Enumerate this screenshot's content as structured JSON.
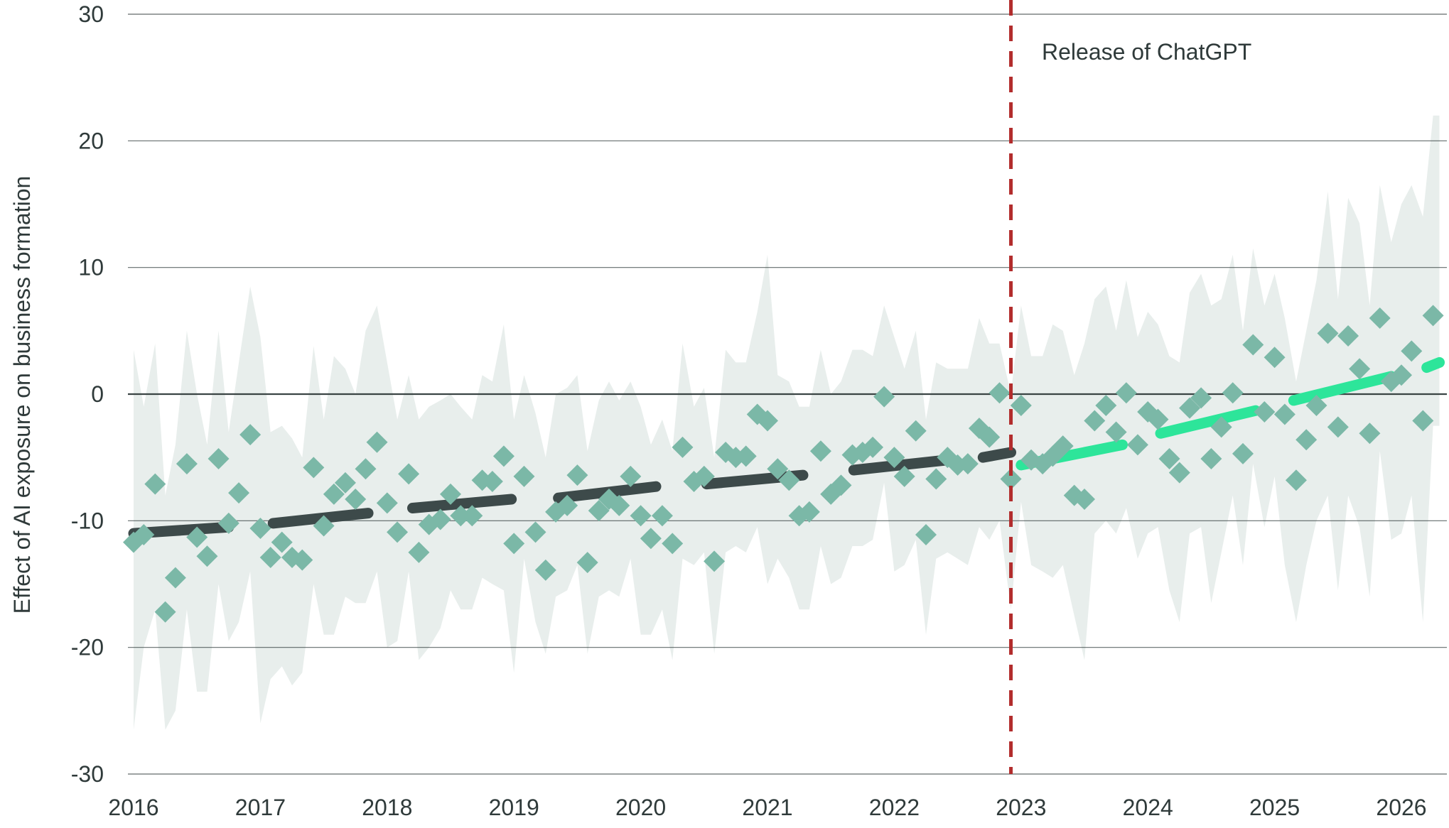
{
  "chart_data": {
    "type": "scatter",
    "title": "",
    "xlabel": "",
    "ylabel": "Effect of AI exposure on business formation",
    "xlim": [
      2016,
      2026.3
    ],
    "ylim": [
      -30,
      30
    ],
    "xticks": [
      "2016",
      "2017",
      "2018",
      "2019",
      "2020",
      "2021",
      "2022",
      "2023",
      "2024",
      "2025",
      "2026"
    ],
    "yticks": [
      "30",
      "20",
      "10",
      "0",
      "-10",
      "-20",
      "-30"
    ],
    "grid": true,
    "annotation": {
      "text": "Release of ChatGPT",
      "x": 2022.92
    },
    "colors": {
      "points": "#7bb8a7",
      "band": "#e8eeec",
      "pre_trend": "#3d4a4a",
      "post_trend": "#2de59a",
      "release_line": "#b22d2d",
      "grid": "#2f3a3a"
    },
    "series": [
      {
        "name": "",
        "kind": "points",
        "x": [
          2016.0,
          2016.08,
          2016.17,
          2016.25,
          2016.33,
          2016.42,
          2016.5,
          2016.58,
          2016.67,
          2016.75,
          2016.83,
          2016.92,
          2017.0,
          2017.08,
          2017.17,
          2017.25,
          2017.33,
          2017.42,
          2017.5,
          2017.58,
          2017.67,
          2017.75,
          2017.83,
          2017.92,
          2018.0,
          2018.08,
          2018.17,
          2018.25,
          2018.33,
          2018.42,
          2018.5,
          2018.58,
          2018.67,
          2018.75,
          2018.83,
          2018.92,
          2019.0,
          2019.08,
          2019.17,
          2019.25,
          2019.33,
          2019.42,
          2019.5,
          2019.58,
          2019.67,
          2019.75,
          2019.83,
          2019.92,
          2020.0,
          2020.08,
          2020.17,
          2020.25,
          2020.33,
          2020.42,
          2020.5,
          2020.58,
          2020.67,
          2020.75,
          2020.83,
          2020.92,
          2021.0,
          2021.08,
          2021.17,
          2021.25,
          2021.33,
          2021.42,
          2021.5,
          2021.58,
          2021.67,
          2021.75,
          2021.83,
          2021.92,
          2022.0,
          2022.08,
          2022.17,
          2022.25,
          2022.33,
          2022.42,
          2022.5,
          2022.58,
          2022.67,
          2022.75,
          2022.83,
          2022.92,
          2023.0,
          2023.08,
          2023.17,
          2023.25,
          2023.33,
          2023.42,
          2023.5,
          2023.58,
          2023.67,
          2023.75,
          2023.83,
          2023.92,
          2024.0,
          2024.08,
          2024.17,
          2024.25,
          2024.33,
          2024.42,
          2024.5,
          2024.58,
          2024.67,
          2024.75,
          2024.83,
          2024.92,
          2025.0,
          2025.08,
          2025.17,
          2025.25,
          2025.33,
          2025.42,
          2025.5,
          2025.58,
          2025.67,
          2025.75,
          2025.83,
          2025.92,
          2026.0,
          2026.08,
          2026.17,
          2026.25
        ],
        "y": [
          -11.7,
          -11.1,
          -7.1,
          -17.2,
          -14.5,
          -5.5,
          -11.3,
          -12.8,
          -5.1,
          -10.2,
          -7.8,
          -3.2,
          -10.6,
          -12.9,
          -11.7,
          -12.9,
          -13.1,
          -5.8,
          -10.4,
          -7.9,
          -7.0,
          -8.3,
          -5.9,
          -3.8,
          -8.6,
          -10.9,
          -6.3,
          -12.5,
          -10.3,
          -9.9,
          -7.9,
          -9.6,
          -9.6,
          -6.8,
          -6.9,
          -4.9,
          -11.8,
          -6.5,
          -10.9,
          -13.9,
          -9.3,
          -8.8,
          -6.4,
          -13.3,
          -9.2,
          -8.3,
          -8.8,
          -6.5,
          -9.6,
          -11.4,
          -9.6,
          -11.8,
          -4.2,
          -6.9,
          -6.5,
          -13.2,
          -4.6,
          -5.0,
          -4.9,
          -1.6,
          -2.1,
          -5.9,
          -6.8,
          -9.6,
          -9.3,
          -4.5,
          -7.9,
          -7.2,
          -4.8,
          -4.6,
          -4.2,
          -0.2,
          -5.0,
          -6.5,
          -2.9,
          -11.1,
          -6.7,
          -5.0,
          -5.6,
          -5.5,
          -2.7,
          -3.4,
          0.1,
          -6.7,
          -0.9,
          -5.2,
          -5.5,
          -4.9,
          -4.1,
          -8.0,
          -8.3,
          -2.1,
          -0.9,
          -3.0,
          0.1,
          -4.0,
          -1.4,
          -2.0,
          -5.1,
          -6.2,
          -1.1,
          -0.3,
          -5.1,
          -2.6,
          0.1,
          -4.7,
          3.9,
          -1.4,
          2.9,
          -1.6,
          -6.8,
          -3.6,
          -0.9,
          4.8,
          -2.6,
          4.6,
          2.0,
          -3.1,
          6.0,
          1.0,
          1.5,
          3.4,
          -2.1,
          6.2
        ]
      },
      {
        "name": "",
        "kind": "band",
        "x": [
          2016.0,
          2016.08,
          2016.17,
          2016.25,
          2016.33,
          2016.42,
          2016.5,
          2016.58,
          2016.67,
          2016.75,
          2016.83,
          2016.92,
          2017.0,
          2017.08,
          2017.17,
          2017.25,
          2017.33,
          2017.42,
          2017.5,
          2017.58,
          2017.67,
          2017.75,
          2017.83,
          2017.92,
          2018.0,
          2018.08,
          2018.17,
          2018.25,
          2018.33,
          2018.42,
          2018.5,
          2018.58,
          2018.67,
          2018.75,
          2018.83,
          2018.92,
          2019.0,
          2019.08,
          2019.17,
          2019.25,
          2019.33,
          2019.42,
          2019.5,
          2019.58,
          2019.67,
          2019.75,
          2019.83,
          2019.92,
          2020.0,
          2020.08,
          2020.17,
          2020.25,
          2020.33,
          2020.42,
          2020.5,
          2020.58,
          2020.67,
          2020.75,
          2020.83,
          2020.92,
          2021.0,
          2021.08,
          2021.17,
          2021.25,
          2021.33,
          2021.42,
          2021.5,
          2021.58,
          2021.67,
          2021.75,
          2021.83,
          2021.92,
          2022.0,
          2022.08,
          2022.17,
          2022.25,
          2022.33,
          2022.42,
          2022.5,
          2022.58,
          2022.67,
          2022.75,
          2022.83,
          2022.92,
          2023.0,
          2023.08,
          2023.17,
          2023.25,
          2023.33,
          2023.42,
          2023.5,
          2023.58,
          2023.67,
          2023.75,
          2023.83,
          2023.92,
          2024.0,
          2024.08,
          2024.17,
          2024.25,
          2024.33,
          2024.42,
          2024.5,
          2024.58,
          2024.67,
          2024.75,
          2024.83,
          2024.92,
          2025.0,
          2025.08,
          2025.17,
          2025.25,
          2025.33,
          2025.42,
          2025.5,
          2025.58,
          2025.67,
          2025.75,
          2025.83,
          2025.92,
          2026.0,
          2026.08,
          2026.17,
          2026.25,
          2026.3
        ],
        "upper": [
          3.5,
          -1.0,
          4.0,
          -8.0,
          -4.0,
          5.0,
          0.0,
          -4.0,
          5.0,
          -3.0,
          2.5,
          8.5,
          4.5,
          -3.0,
          -2.5,
          -3.5,
          -5.0,
          3.8,
          -2.0,
          3.0,
          2.0,
          0.0,
          5.0,
          7.0,
          2.5,
          -2.0,
          1.5,
          -2.0,
          -1.0,
          -0.5,
          0.0,
          -1.0,
          -2.0,
          1.5,
          1.0,
          5.5,
          -2.0,
          1.5,
          -1.5,
          -5.0,
          0.0,
          0.5,
          1.5,
          -4.5,
          -0.5,
          1.0,
          -0.5,
          1.0,
          -1.0,
          -4.0,
          -2.0,
          -4.5,
          4.0,
          -1.0,
          0.5,
          -5.0,
          3.5,
          2.5,
          2.5,
          6.5,
          11.0,
          1.5,
          1.0,
          -1.0,
          -1.0,
          3.5,
          0.0,
          1.0,
          3.5,
          3.5,
          3.0,
          7.0,
          4.5,
          2.0,
          5.0,
          -2.0,
          2.5,
          2.0,
          2.0,
          2.0,
          6.0,
          4.0,
          4.0,
          0.0,
          7.0,
          3.0,
          3.0,
          5.5,
          5.0,
          1.5,
          4.0,
          7.5,
          8.5,
          5.0,
          9.0,
          4.5,
          6.5,
          5.5,
          3.0,
          2.5,
          8.0,
          9.5,
          7.0,
          7.5,
          11.0,
          5.0,
          11.5,
          7.0,
          9.5,
          6.0,
          1.0,
          5.0,
          9.0,
          16.0,
          7.5,
          15.5,
          13.5,
          7.0,
          16.5,
          12.0,
          15.0,
          16.5,
          14.0,
          22.0,
          22.0
        ],
        "lower": [
          -26.5,
          -20.0,
          -17.0,
          -26.5,
          -25.0,
          -17.0,
          -23.5,
          -23.5,
          -15.0,
          -19.5,
          -18.0,
          -14.0,
          -26.0,
          -22.5,
          -21.5,
          -23.0,
          -22.0,
          -15.0,
          -19.0,
          -19.0,
          -16.0,
          -16.5,
          -16.5,
          -14.0,
          -20.0,
          -19.5,
          -14.0,
          -21.0,
          -20.0,
          -18.5,
          -15.5,
          -17.0,
          -17.0,
          -14.5,
          -15.0,
          -15.5,
          -22.0,
          -13.0,
          -18.0,
          -20.5,
          -16.0,
          -15.5,
          -13.5,
          -20.5,
          -16.0,
          -15.5,
          -16.0,
          -13.0,
          -19.0,
          -19.0,
          -17.0,
          -21.0,
          -13.0,
          -13.5,
          -12.5,
          -20.5,
          -12.5,
          -12.0,
          -12.5,
          -10.5,
          -15.0,
          -13.0,
          -14.5,
          -17.0,
          -17.0,
          -12.0,
          -15.0,
          -14.5,
          -12.0,
          -12.0,
          -11.5,
          -7.0,
          -14.0,
          -13.5,
          -11.5,
          -19.0,
          -13.0,
          -12.5,
          -13.0,
          -13.5,
          -10.5,
          -11.5,
          -10.0,
          -17.0,
          -8.5,
          -13.5,
          -14.0,
          -14.5,
          -13.5,
          -17.5,
          -21.0,
          -11.0,
          -10.0,
          -11.0,
          -9.0,
          -13.0,
          -11.0,
          -10.5,
          -15.5,
          -18.0,
          -11.0,
          -10.5,
          -16.5,
          -12.5,
          -8.0,
          -13.5,
          -5.5,
          -10.5,
          -6.5,
          -13.5,
          -18.0,
          -13.5,
          -10.0,
          -8.0,
          -15.5,
          -8.0,
          -10.5,
          -16.0,
          -4.5,
          -11.5,
          -11.0,
          -8.0,
          -18.0,
          -2.5,
          -2.5
        ]
      },
      {
        "name": "",
        "kind": "pre-trend",
        "segments": [
          {
            "x": [
              2016.0,
              2016.75
            ],
            "y": [
              -11.0,
              -10.5
            ]
          },
          {
            "x": [
              2017.1,
              2017.85
            ],
            "y": [
              -10.2,
              -9.4
            ]
          },
          {
            "x": [
              2018.2,
              2018.98
            ],
            "y": [
              -9.0,
              -8.3
            ]
          },
          {
            "x": [
              2019.35,
              2020.12
            ],
            "y": [
              -8.2,
              -7.3
            ]
          },
          {
            "x": [
              2020.52,
              2021.28
            ],
            "y": [
              -7.1,
              -6.4
            ]
          },
          {
            "x": [
              2021.68,
              2022.42
            ],
            "y": [
              -6.0,
              -5.2
            ]
          },
          {
            "x": [
              2022.7,
              2022.92
            ],
            "y": [
              -5.0,
              -4.6
            ]
          }
        ]
      },
      {
        "name": "",
        "kind": "post-trend",
        "segments": [
          {
            "x": [
              2023.0,
              2023.8
            ],
            "y": [
              -5.6,
              -4.0
            ]
          },
          {
            "x": [
              2024.1,
              2024.85
            ],
            "y": [
              -3.1,
              -1.3
            ]
          },
          {
            "x": [
              2025.15,
              2025.92
            ],
            "y": [
              -0.5,
              1.4
            ]
          },
          {
            "x": [
              2026.2,
              2026.3
            ],
            "y": [
              2.1,
              2.5
            ]
          }
        ]
      }
    ]
  }
}
